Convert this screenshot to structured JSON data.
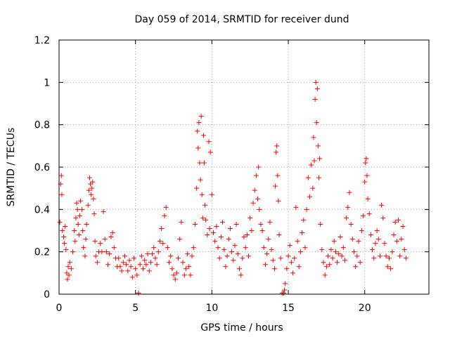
{
  "chart_data": {
    "type": "scatter",
    "title": "Day 059 of 2014, SRMTID for receiver dund",
    "xlabel": "GPS time / hours",
    "ylabel": "SRMTID / TECUs",
    "xlim": [
      0,
      24.2
    ],
    "ylim": [
      0,
      1.2
    ],
    "xticks": [
      0,
      5,
      10,
      15,
      20
    ],
    "xtick_labels": [
      "0",
      "5",
      "10",
      "15",
      "20"
    ],
    "yticks": [
      0,
      0.2,
      0.4,
      0.6,
      0.8,
      1.0,
      1.2
    ],
    "ytick_labels": [
      "0",
      "0.2",
      "0.4",
      "0.6",
      "0.8",
      "1",
      "1.2"
    ],
    "grid": true,
    "marker": "plus",
    "color": "#ff0000",
    "series": [
      {
        "name": "SRMTID",
        "points": [
          [
            0.05,
            0.34
          ],
          [
            0.1,
            0.52
          ],
          [
            0.15,
            0.56
          ],
          [
            0.18,
            0.47
          ],
          [
            0.22,
            0.3
          ],
          [
            0.3,
            0.27
          ],
          [
            0.35,
            0.24
          ],
          [
            0.4,
            0.32
          ],
          [
            0.45,
            0.21
          ],
          [
            0.5,
            0.1
          ],
          [
            0.55,
            0.07
          ],
          [
            0.6,
            0.13
          ],
          [
            0.65,
            0.09
          ],
          [
            0.7,
            0.15
          ],
          [
            0.8,
            0.12
          ],
          [
            0.9,
            0.2
          ],
          [
            1.0,
            0.3
          ],
          [
            1.05,
            0.25
          ],
          [
            1.1,
            0.36
          ],
          [
            1.15,
            0.43
          ],
          [
            1.2,
            0.4
          ],
          [
            1.25,
            0.33
          ],
          [
            1.3,
            0.28
          ],
          [
            1.35,
            0.37
          ],
          [
            1.4,
            0.44
          ],
          [
            1.5,
            0.4
          ],
          [
            1.55,
            0.3
          ],
          [
            1.6,
            0.22
          ],
          [
            1.7,
            0.18
          ],
          [
            1.75,
            0.26
          ],
          [
            1.8,
            0.33
          ],
          [
            1.9,
            0.42
          ],
          [
            1.95,
            0.49
          ],
          [
            2.0,
            0.55
          ],
          [
            2.05,
            0.52
          ],
          [
            2.1,
            0.47
          ],
          [
            2.15,
            0.5
          ],
          [
            2.2,
            0.53
          ],
          [
            2.25,
            0.45
          ],
          [
            2.3,
            0.38
          ],
          [
            2.35,
            0.25
          ],
          [
            2.4,
            0.18
          ],
          [
            2.5,
            0.15
          ],
          [
            2.6,
            0.2
          ],
          [
            2.7,
            0.24
          ],
          [
            2.8,
            0.2
          ],
          [
            2.9,
            0.39
          ],
          [
            3.0,
            0.26
          ],
          [
            3.1,
            0.2
          ],
          [
            3.2,
            0.14
          ],
          [
            3.3,
            0.19
          ],
          [
            3.4,
            0.27
          ],
          [
            3.5,
            0.29
          ],
          [
            3.6,
            0.22
          ],
          [
            3.7,
            0.17
          ],
          [
            3.8,
            0.13
          ],
          [
            3.9,
            0.17
          ],
          [
            4.0,
            0.13
          ],
          [
            4.1,
            0.11
          ],
          [
            4.2,
            0.15
          ],
          [
            4.3,
            0.18
          ],
          [
            4.4,
            0.14
          ],
          [
            4.5,
            0.11
          ],
          [
            4.6,
            0.16
          ],
          [
            4.7,
            0.13
          ],
          [
            4.8,
            0.08
          ],
          [
            4.9,
            0.17
          ],
          [
            5.0,
            0.12
          ],
          [
            5.1,
            0.09
          ],
          [
            5.2,
            0.005
          ],
          [
            5.3,
            0.14
          ],
          [
            5.4,
            0.18
          ],
          [
            5.5,
            0.12
          ],
          [
            5.6,
            0.16
          ],
          [
            5.7,
            0.14
          ],
          [
            5.8,
            0.19
          ],
          [
            5.9,
            0.11
          ],
          [
            6.0,
            0.15
          ],
          [
            6.1,
            0.19
          ],
          [
            6.2,
            0.22
          ],
          [
            6.3,
            0.17
          ],
          [
            6.4,
            0.14
          ],
          [
            6.5,
            0.2
          ],
          [
            6.6,
            0.25
          ],
          [
            6.7,
            0.31
          ],
          [
            6.8,
            0.24
          ],
          [
            6.9,
            0.37
          ],
          [
            7.0,
            0.41
          ],
          [
            7.1,
            0.22
          ],
          [
            7.2,
            0.15
          ],
          [
            7.3,
            0.18
          ],
          [
            7.4,
            0.12
          ],
          [
            7.5,
            0.09
          ],
          [
            7.6,
            0.07
          ],
          [
            7.7,
            0.1
          ],
          [
            7.8,
            0.17
          ],
          [
            7.9,
            0.26
          ],
          [
            8.0,
            0.34
          ],
          [
            8.1,
            0.15
          ],
          [
            8.2,
            0.09
          ],
          [
            8.3,
            0.12
          ],
          [
            8.4,
            0.19
          ],
          [
            8.5,
            0.13
          ],
          [
            8.6,
            0.09
          ],
          [
            8.7,
            0.18
          ],
          [
            8.8,
            0.22
          ],
          [
            8.9,
            0.33
          ],
          [
            9.0,
            0.5
          ],
          [
            9.05,
            0.77
          ],
          [
            9.1,
            0.69
          ],
          [
            9.15,
            0.81
          ],
          [
            9.2,
            0.62
          ],
          [
            9.25,
            0.54
          ],
          [
            9.3,
            0.84
          ],
          [
            9.35,
            0.47
          ],
          [
            9.4,
            0.36
          ],
          [
            9.45,
            0.75
          ],
          [
            9.5,
            0.62
          ],
          [
            9.55,
            0.42
          ],
          [
            9.6,
            0.35
          ],
          [
            9.7,
            0.28
          ],
          [
            9.8,
            0.72
          ],
          [
            9.85,
            0.31
          ],
          [
            9.9,
            0.67
          ],
          [
            10.0,
            0.47
          ],
          [
            10.1,
            0.29
          ],
          [
            10.2,
            0.25
          ],
          [
            10.3,
            0.32
          ],
          [
            10.4,
            0.22
          ],
          [
            10.5,
            0.17
          ],
          [
            10.6,
            0.27
          ],
          [
            10.7,
            0.34
          ],
          [
            10.8,
            0.21
          ],
          [
            10.9,
            0.13
          ],
          [
            11.0,
            0.18
          ],
          [
            11.1,
            0.26
          ],
          [
            11.2,
            0.31
          ],
          [
            11.3,
            0.2
          ],
          [
            11.4,
            0.16
          ],
          [
            11.5,
            0.23
          ],
          [
            11.6,
            0.33
          ],
          [
            11.7,
            0.19
          ],
          [
            11.8,
            0.12
          ],
          [
            11.9,
            0.09
          ],
          [
            12.0,
            0.17
          ],
          [
            12.1,
            0.27
          ],
          [
            12.2,
            0.22
          ],
          [
            12.3,
            0.28
          ],
          [
            12.4,
            0.18
          ],
          [
            12.5,
            0.36
          ],
          [
            12.6,
            0.3
          ],
          [
            12.7,
            0.43
          ],
          [
            12.8,
            0.49
          ],
          [
            12.9,
            0.56
          ],
          [
            13.0,
            0.45
          ],
          [
            13.05,
            0.6
          ],
          [
            13.1,
            0.4
          ],
          [
            13.2,
            0.33
          ],
          [
            13.3,
            0.3
          ],
          [
            13.4,
            0.22
          ],
          [
            13.5,
            0.14
          ],
          [
            13.6,
            0.19
          ],
          [
            13.7,
            0.26
          ],
          [
            13.8,
            0.34
          ],
          [
            13.9,
            0.21
          ],
          [
            14.0,
            0.16
          ],
          [
            14.1,
            0.12
          ],
          [
            14.15,
            0.51
          ],
          [
            14.2,
            0.67
          ],
          [
            14.25,
            0.7
          ],
          [
            14.3,
            0.56
          ],
          [
            14.35,
            0.44
          ],
          [
            14.4,
            0.28
          ],
          [
            14.5,
            0.17
          ],
          [
            14.6,
            0.005
          ],
          [
            14.7,
            0.005
          ],
          [
            14.75,
            0.02
          ],
          [
            14.8,
            0.05
          ],
          [
            14.9,
            0.12
          ],
          [
            15.0,
            0.18
          ],
          [
            15.1,
            0.23
          ],
          [
            15.2,
            0.15
          ],
          [
            15.3,
            0.1
          ],
          [
            15.4,
            0.17
          ],
          [
            15.5,
            0.41
          ],
          [
            15.6,
            0.25
          ],
          [
            15.7,
            0.13
          ],
          [
            15.8,
            0.2
          ],
          [
            15.9,
            0.29
          ],
          [
            16.0,
            0.35
          ],
          [
            16.1,
            0.22
          ],
          [
            16.2,
            0.4
          ],
          [
            16.3,
            0.55
          ],
          [
            16.4,
            0.46
          ],
          [
            16.5,
            0.61
          ],
          [
            16.6,
            0.5
          ],
          [
            16.65,
            0.74
          ],
          [
            16.7,
            0.63
          ],
          [
            16.75,
            0.92
          ],
          [
            16.8,
            1.0
          ],
          [
            16.85,
            0.81
          ],
          [
            16.9,
            0.97
          ],
          [
            16.95,
            0.7
          ],
          [
            17.0,
            0.55
          ],
          [
            17.05,
            0.64
          ],
          [
            17.1,
            0.33
          ],
          [
            17.2,
            0.21
          ],
          [
            17.3,
            0.15
          ],
          [
            17.4,
            0.09
          ],
          [
            17.5,
            0.13
          ],
          [
            17.6,
            0.18
          ],
          [
            17.7,
            0.14
          ],
          [
            17.8,
            0.21
          ],
          [
            17.9,
            0.17
          ],
          [
            18.0,
            0.25
          ],
          [
            18.1,
            0.2
          ],
          [
            18.2,
            0.15
          ],
          [
            18.3,
            0.19
          ],
          [
            18.4,
            0.27
          ],
          [
            18.5,
            0.18
          ],
          [
            18.6,
            0.22
          ],
          [
            18.7,
            0.16
          ],
          [
            18.8,
            0.36
          ],
          [
            18.9,
            0.41
          ],
          [
            19.0,
            0.48
          ],
          [
            19.1,
            0.33
          ],
          [
            19.2,
            0.26
          ],
          [
            19.3,
            0.2
          ],
          [
            19.4,
            0.13
          ],
          [
            19.5,
            0.18
          ],
          [
            19.6,
            0.25
          ],
          [
            19.7,
            0.15
          ],
          [
            19.8,
            0.3
          ],
          [
            19.9,
            0.37
          ],
          [
            20.0,
            0.53
          ],
          [
            20.05,
            0.62
          ],
          [
            20.1,
            0.64
          ],
          [
            20.15,
            0.56
          ],
          [
            20.2,
            0.45
          ],
          [
            20.3,
            0.38
          ],
          [
            20.4,
            0.28
          ],
          [
            20.5,
            0.21
          ],
          [
            20.6,
            0.17
          ],
          [
            20.7,
            0.24
          ],
          [
            20.8,
            0.3
          ],
          [
            20.9,
            0.26
          ],
          [
            21.0,
            0.18
          ],
          [
            21.1,
            0.42
          ],
          [
            21.2,
            0.36
          ],
          [
            21.3,
            0.24
          ],
          [
            21.4,
            0.18
          ],
          [
            21.5,
            0.13
          ],
          [
            21.6,
            0.17
          ],
          [
            21.7,
            0.12
          ],
          [
            21.8,
            0.2
          ],
          [
            21.9,
            0.28
          ],
          [
            22.0,
            0.34
          ],
          [
            22.1,
            0.25
          ],
          [
            22.2,
            0.35
          ],
          [
            22.3,
            0.18
          ],
          [
            22.4,
            0.26
          ],
          [
            22.5,
            0.32
          ],
          [
            22.6,
            0.21
          ],
          [
            22.7,
            0.17
          ]
        ]
      }
    ]
  }
}
